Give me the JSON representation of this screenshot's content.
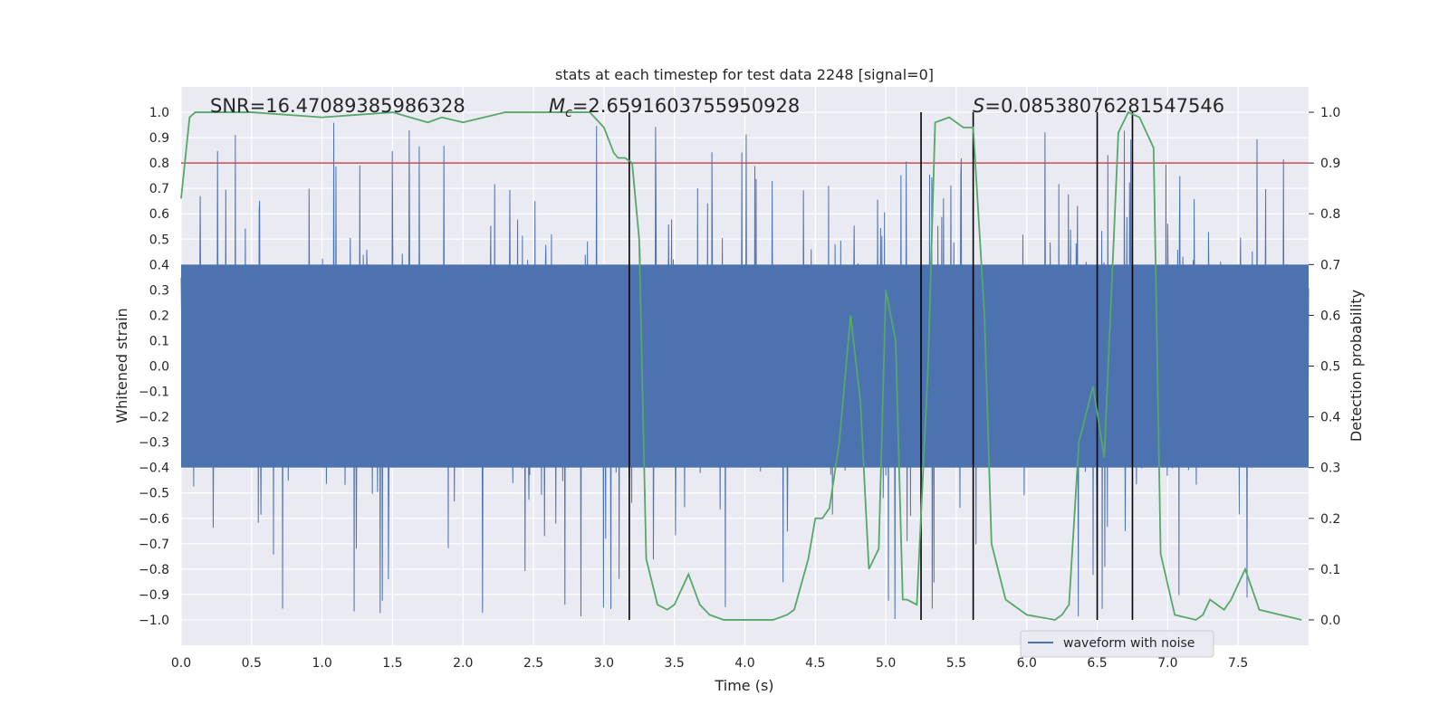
{
  "chart_data": {
    "type": "line",
    "title": "stats at each timestep for test data 2248 [signal=0]",
    "xlabel": "Time (s)",
    "ylabel": "Whitened strain",
    "y2label": "Detection probability",
    "xlim": [
      0.0,
      8.0
    ],
    "ylim": [
      -1.1,
      1.1
    ],
    "y2lim": [
      -0.05,
      1.05
    ],
    "x_ticks": [
      "0.0",
      "0.5",
      "1.0",
      "1.5",
      "2.0",
      "2.5",
      "3.0",
      "3.5",
      "4.0",
      "4.5",
      "5.0",
      "5.5",
      "6.0",
      "6.5",
      "7.0",
      "7.5"
    ],
    "y_ticks": [
      "−1.0",
      "−0.9",
      "−0.8",
      "−0.7",
      "−0.6",
      "−0.5",
      "−0.4",
      "−0.3",
      "−0.2",
      "−0.1",
      "0.0",
      "0.1",
      "0.2",
      "0.3",
      "0.4",
      "0.5",
      "0.6",
      "0.7",
      "0.8",
      "0.9",
      "1.0"
    ],
    "y2_ticks": [
      "0.0",
      "0.1",
      "0.2",
      "0.3",
      "0.4",
      "0.5",
      "0.6",
      "0.7",
      "0.8",
      "0.9",
      "1.0"
    ],
    "grid": true,
    "legend": {
      "placement": "lower-right",
      "entries": [
        "waveform with noise"
      ]
    },
    "annotations": {
      "snr_text": "SNR=16.47089385986328",
      "mc_symbol": "M",
      "mc_sub": "c",
      "mc_value": "=2.6591603755950928",
      "s_symbol": "S",
      "s_value": "=0.08538076281547546"
    },
    "threshold": 0.9,
    "detection_windows": [
      3.18,
      5.25,
      5.62,
      6.5,
      6.75
    ],
    "series": [
      {
        "name": "waveform with noise",
        "axis": "left",
        "kind": "dense noise",
        "envelope_lower": -1.0,
        "envelope_upper": 0.96,
        "core_band": [
          -0.4,
          0.4
        ],
        "color": "#4c72b0"
      },
      {
        "axis": "right",
        "color": "#55a868",
        "x": [
          0.0,
          0.06,
          0.1,
          0.5,
          1.0,
          1.5,
          1.75,
          1.85,
          2.0,
          2.15,
          2.3,
          2.6,
          2.9,
          3.0,
          3.07,
          3.1,
          3.15,
          3.2,
          3.25,
          3.3,
          3.38,
          3.45,
          3.5,
          3.55,
          3.6,
          3.68,
          3.75,
          3.85,
          4.0,
          4.2,
          4.3,
          4.35,
          4.45,
          4.5,
          4.55,
          4.6,
          4.67,
          4.75,
          4.82,
          4.88,
          4.95,
          5.0,
          5.07,
          5.12,
          5.15,
          5.22,
          5.3,
          5.35,
          5.45,
          5.55,
          5.62,
          5.7,
          5.75,
          5.85,
          6.0,
          6.2,
          6.25,
          6.3,
          6.37,
          6.47,
          6.55,
          6.65,
          6.72,
          6.8,
          6.9,
          6.95,
          7.05,
          7.2,
          7.25,
          7.3,
          7.4,
          7.45,
          7.55,
          7.65,
          7.8,
          7.95
        ],
        "y": [
          0.83,
          0.99,
          1.0,
          1.0,
          0.99,
          1.0,
          0.98,
          0.99,
          0.98,
          0.99,
          1.0,
          1.0,
          1.0,
          0.97,
          0.92,
          0.91,
          0.91,
          0.9,
          0.75,
          0.12,
          0.03,
          0.02,
          0.03,
          0.06,
          0.09,
          0.03,
          0.01,
          0.0,
          0.0,
          0.0,
          0.01,
          0.02,
          0.12,
          0.2,
          0.2,
          0.22,
          0.35,
          0.6,
          0.43,
          0.1,
          0.14,
          0.65,
          0.55,
          0.04,
          0.04,
          0.03,
          0.5,
          0.98,
          0.99,
          0.97,
          0.97,
          0.6,
          0.15,
          0.04,
          0.01,
          0.0,
          0.01,
          0.03,
          0.35,
          0.46,
          0.32,
          0.96,
          1.0,
          0.99,
          0.93,
          0.13,
          0.01,
          0.0,
          0.01,
          0.04,
          0.02,
          0.04,
          0.1,
          0.02,
          0.01,
          0.0
        ]
      }
    ]
  }
}
